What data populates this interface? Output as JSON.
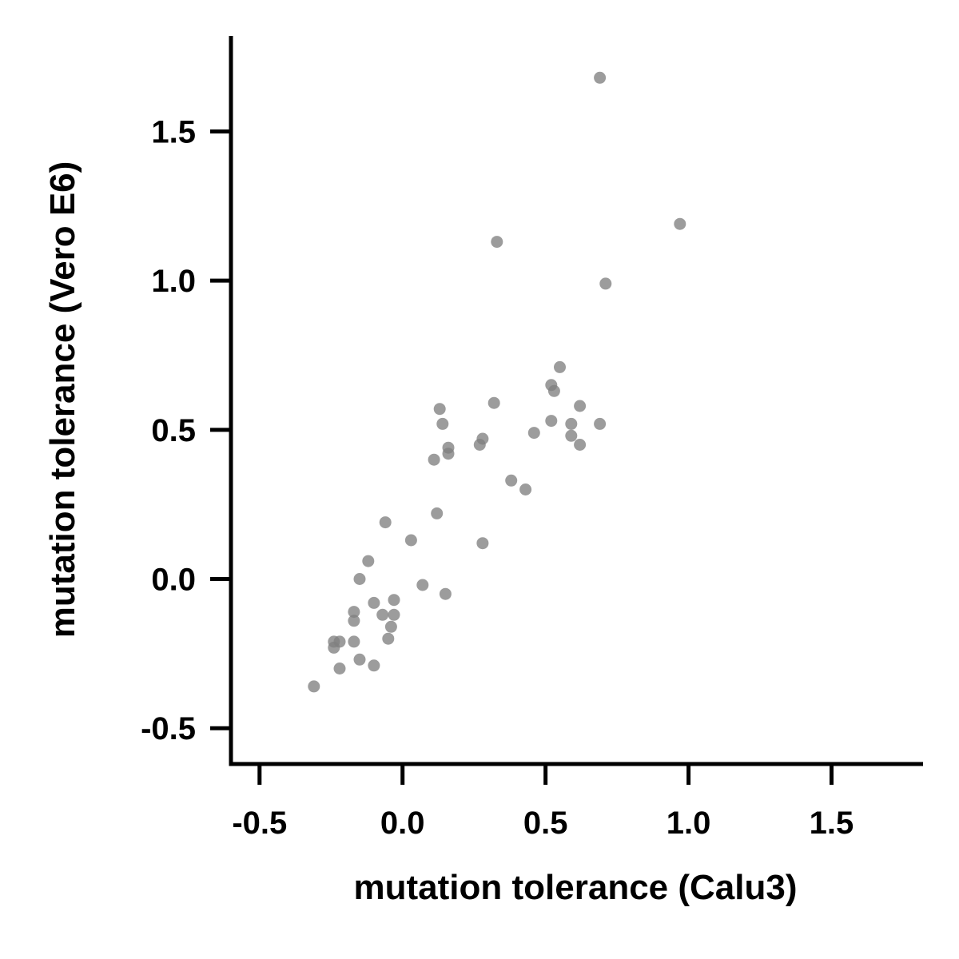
{
  "chart_data": {
    "type": "scatter",
    "xlabel": "mutation tolerance (Calu3)",
    "ylabel": "mutation tolerance (Vero E6)",
    "xlim": [
      -0.6,
      1.82
    ],
    "ylim": [
      -0.62,
      1.82
    ],
    "xticks": [
      -0.5,
      0.0,
      0.5,
      1.0,
      1.5
    ],
    "yticks": [
      -0.5,
      0.0,
      0.5,
      1.0,
      1.5
    ],
    "xtick_labels": [
      "-0.5",
      "0.0",
      "0.5",
      "1.0",
      "1.5"
    ],
    "ytick_labels": [
      "-0.5",
      "0.0",
      "0.5",
      "1.0",
      "1.5"
    ],
    "grid": false,
    "point_color": "#808080",
    "points": [
      {
        "x": -0.31,
        "y": -0.36
      },
      {
        "x": -0.24,
        "y": -0.23
      },
      {
        "x": -0.24,
        "y": -0.21
      },
      {
        "x": -0.22,
        "y": -0.3
      },
      {
        "x": -0.22,
        "y": -0.21
      },
      {
        "x": -0.17,
        "y": -0.21
      },
      {
        "x": -0.17,
        "y": -0.14
      },
      {
        "x": -0.17,
        "y": -0.11
      },
      {
        "x": -0.15,
        "y": 0.0
      },
      {
        "x": -0.15,
        "y": -0.27
      },
      {
        "x": -0.12,
        "y": 0.06
      },
      {
        "x": -0.1,
        "y": -0.08
      },
      {
        "x": -0.1,
        "y": -0.29
      },
      {
        "x": -0.07,
        "y": -0.12
      },
      {
        "x": -0.06,
        "y": 0.19
      },
      {
        "x": -0.05,
        "y": -0.2
      },
      {
        "x": -0.04,
        "y": -0.16
      },
      {
        "x": -0.03,
        "y": -0.12
      },
      {
        "x": -0.03,
        "y": -0.07
      },
      {
        "x": 0.03,
        "y": 0.13
      },
      {
        "x": 0.07,
        "y": -0.02
      },
      {
        "x": 0.11,
        "y": 0.4
      },
      {
        "x": 0.12,
        "y": 0.22
      },
      {
        "x": 0.13,
        "y": 0.57
      },
      {
        "x": 0.14,
        "y": 0.52
      },
      {
        "x": 0.15,
        "y": -0.05
      },
      {
        "x": 0.16,
        "y": 0.42
      },
      {
        "x": 0.16,
        "y": 0.44
      },
      {
        "x": 0.27,
        "y": 0.45
      },
      {
        "x": 0.28,
        "y": 0.47
      },
      {
        "x": 0.28,
        "y": 0.12
      },
      {
        "x": 0.32,
        "y": 0.59
      },
      {
        "x": 0.33,
        "y": 1.13
      },
      {
        "x": 0.38,
        "y": 0.33
      },
      {
        "x": 0.43,
        "y": 0.3
      },
      {
        "x": 0.46,
        "y": 0.49
      },
      {
        "x": 0.52,
        "y": 0.65
      },
      {
        "x": 0.52,
        "y": 0.53
      },
      {
        "x": 0.53,
        "y": 0.63
      },
      {
        "x": 0.55,
        "y": 0.71
      },
      {
        "x": 0.59,
        "y": 0.52
      },
      {
        "x": 0.59,
        "y": 0.48
      },
      {
        "x": 0.62,
        "y": 0.58
      },
      {
        "x": 0.62,
        "y": 0.45
      },
      {
        "x": 0.69,
        "y": 0.52
      },
      {
        "x": 0.69,
        "y": 1.68
      },
      {
        "x": 0.71,
        "y": 0.99
      },
      {
        "x": 0.97,
        "y": 1.19
      }
    ]
  }
}
